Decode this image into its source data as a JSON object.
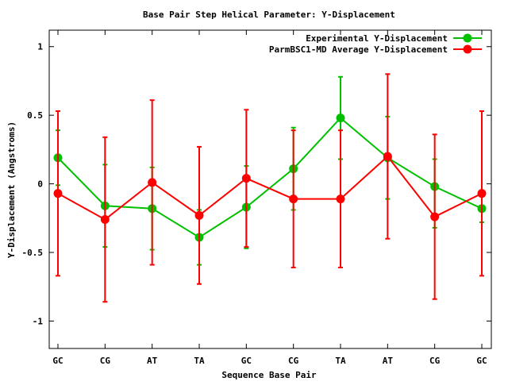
{
  "chart_data": {
    "type": "line",
    "title": "Base Pair Step Helical Parameter: Y-Displacement",
    "xlabel": "Sequence Base Pair",
    "ylabel": "Y-Displacement (Angstroms)",
    "ylim": [
      -1.2,
      1.12
    ],
    "yticks": [
      -1,
      -0.5,
      0,
      0.5,
      1
    ],
    "categories": [
      "GC",
      "CG",
      "AT",
      "TA",
      "GC",
      "CG",
      "TA",
      "AT",
      "CG",
      "GC"
    ],
    "legend_position": "top-right",
    "grid": false,
    "series": [
      {
        "name": "Experimental Y-Displacement",
        "color": "#00c000",
        "values": [
          0.19,
          -0.16,
          -0.18,
          -0.39,
          -0.17,
          0.11,
          0.48,
          0.19,
          -0.02,
          -0.18
        ],
        "err_low": [
          -0.01,
          -0.46,
          -0.48,
          -0.59,
          -0.47,
          -0.19,
          0.18,
          -0.11,
          -0.32,
          -0.28
        ],
        "err_high": [
          0.39,
          0.14,
          0.12,
          -0.19,
          0.13,
          0.41,
          0.78,
          0.49,
          0.18,
          -0.18
        ]
      },
      {
        "name": "ParmBSC1-MD Average Y-Displacement",
        "color": "#ff0000",
        "values": [
          -0.07,
          -0.26,
          0.01,
          -0.23,
          0.04,
          -0.11,
          -0.11,
          0.2,
          -0.24,
          -0.07
        ],
        "err_low": [
          -0.67,
          -0.86,
          -0.59,
          -0.73,
          -0.46,
          -0.61,
          -0.61,
          -0.4,
          -0.84,
          -0.67
        ],
        "err_high": [
          0.53,
          0.34,
          0.61,
          0.27,
          0.54,
          0.39,
          0.39,
          0.8,
          0.36,
          0.53
        ]
      }
    ]
  }
}
